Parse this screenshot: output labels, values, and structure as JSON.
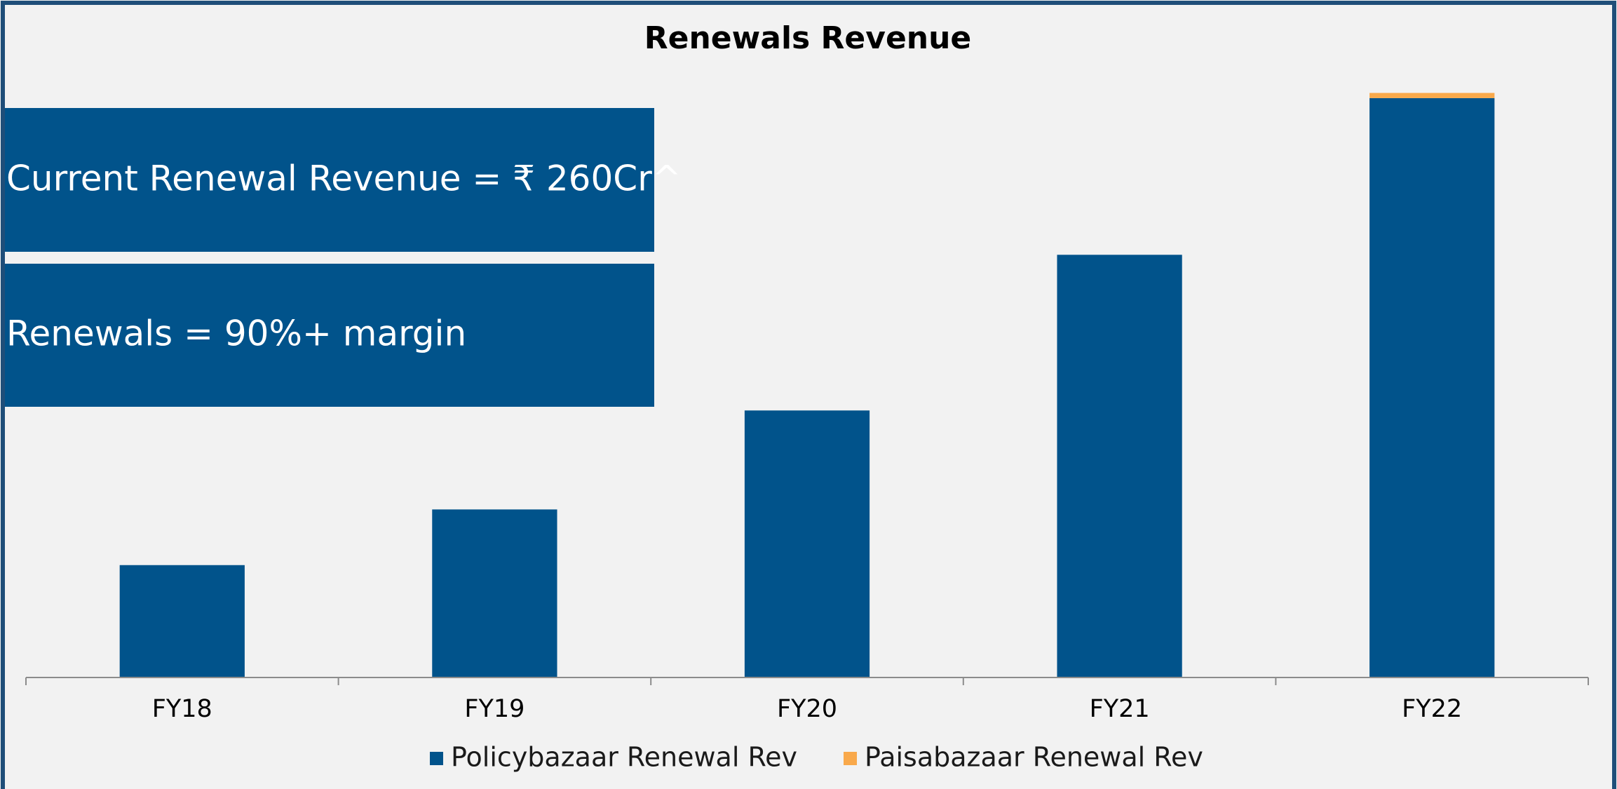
{
  "chart_data": {
    "type": "stacked_bar",
    "title": "Renewals Revenue",
    "annotations": [
      "Current Renewal Revenue = ₹ 260Cr^",
      "Renewals = 90%+ margin"
    ],
    "categories": [
      "FY18",
      "FY19",
      "FY20",
      "FY21",
      "FY22"
    ],
    "series": [
      {
        "name": "Policybazaar Renewal Rev",
        "color": "#01538b",
        "values": [
          109,
          163,
          259,
          410,
          562
        ]
      },
      {
        "name": "Paisabazaar Renewal Rev",
        "color": "#f9a94b",
        "values": [
          0,
          0,
          0,
          0,
          5
        ]
      }
    ],
    "ylim": [
      0,
      600
    ]
  }
}
